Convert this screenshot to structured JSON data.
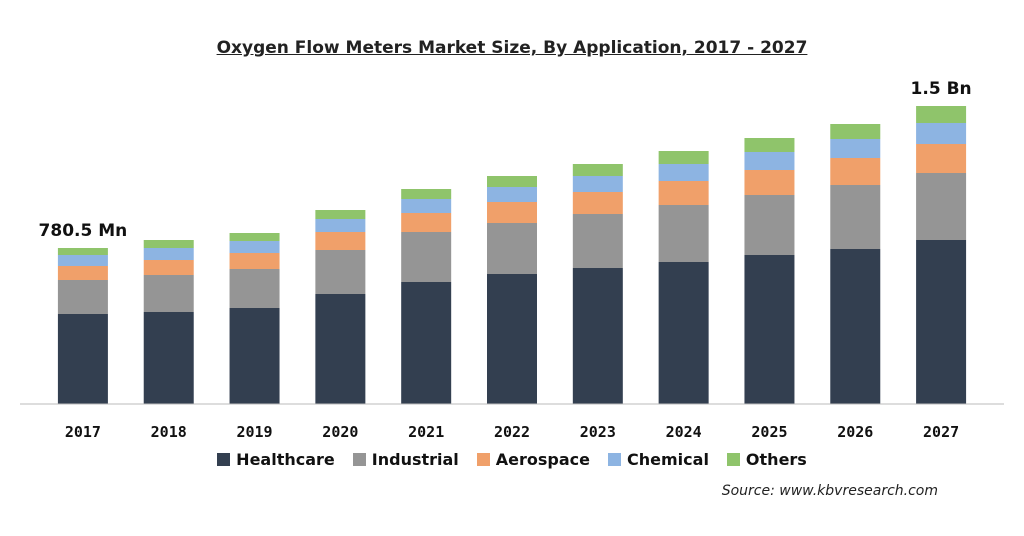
{
  "chart_data": {
    "type": "bar",
    "stacked": true,
    "title": "Oxygen Flow Meters Market Size, By Application, 2017 - 2027",
    "categories": [
      "2017",
      "2018",
      "2019",
      "2020",
      "2021",
      "2022",
      "2023",
      "2024",
      "2025",
      "2026",
      "2027"
    ],
    "series": [
      {
        "name": "Healthcare",
        "color": "#333f50",
        "values": [
          450,
          460,
          480,
          550,
          610,
          650,
          680,
          710,
          745,
          775,
          820
        ]
      },
      {
        "name": "Industrial",
        "color": "#959595",
        "values": [
          170,
          185,
          195,
          220,
          250,
          255,
          270,
          285,
          300,
          320,
          335
        ]
      },
      {
        "name": "Aerospace",
        "color": "#f0a06a",
        "values": [
          70,
          75,
          80,
          90,
          95,
          105,
          110,
          120,
          125,
          135,
          145
        ]
      },
      {
        "name": "Chemical",
        "color": "#8db4e2",
        "values": [
          55,
          60,
          60,
          65,
          70,
          75,
          80,
          85,
          90,
          95,
          105
        ]
      },
      {
        "name": "Others",
        "color": "#8fc46b",
        "values": [
          35,
          40,
          40,
          45,
          50,
          55,
          60,
          65,
          70,
          75,
          85
        ]
      }
    ],
    "annotations": [
      {
        "category": "2017",
        "text": "780.5 Mn"
      },
      {
        "category": "2027",
        "text": "1.5 Bn"
      }
    ],
    "ylim": [
      0,
      1500
    ],
    "grid": false,
    "legend_position": "bottom"
  },
  "source": "Source: www.kbvresearch.com"
}
